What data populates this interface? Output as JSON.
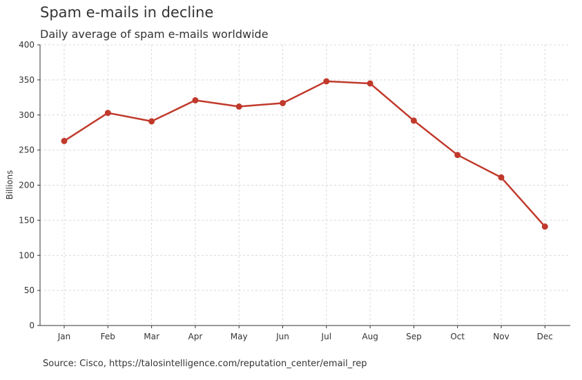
{
  "chart_data": {
    "type": "line",
    "title": "Spam e-mails in decline",
    "subtitle": "Daily average of spam e-mails worldwide",
    "ylabel": "Billions",
    "xlabel": "",
    "categories": [
      "Jan",
      "Feb",
      "Mar",
      "Apr",
      "May",
      "Jun",
      "Jul",
      "Aug",
      "Sep",
      "Oct",
      "Nov",
      "Dec"
    ],
    "series": [
      {
        "values": [
          263,
          303,
          291,
          321,
          312,
          317,
          348,
          345,
          292,
          243,
          211,
          141
        ],
        "color": "#c0392b"
      }
    ],
    "ylim": [
      0,
      400
    ],
    "yticks": [
      0,
      50,
      100,
      150,
      200,
      250,
      300,
      350,
      400
    ],
    "grid": true,
    "legend": "none",
    "source": "Source: Cisco, https://talosintelligence.com/reputation_center/email_rep"
  }
}
